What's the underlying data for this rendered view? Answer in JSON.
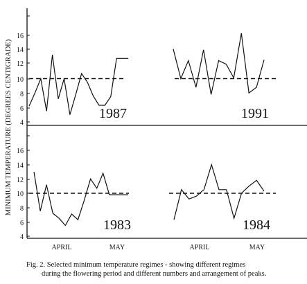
{
  "chart_data": {
    "type": "line",
    "ylabel": "MINIMUM TEMPERATURE (DEGREES CENTIGRADE)",
    "months": [
      "APRIL",
      "MAY"
    ],
    "ylim": [
      4,
      18
    ],
    "yticks_top": [
      "16",
      "14",
      "12",
      "10",
      "8",
      "6",
      "4"
    ],
    "yticks_bottom": [
      "16",
      "14",
      "12",
      "10",
      "8",
      "6",
      "4"
    ],
    "threshold": 10,
    "panels": [
      {
        "year": "1987",
        "threshold": 10,
        "series": [
          {
            "x": [
              0,
              1,
              2,
              3,
              4,
              5,
              6,
              7,
              8,
              9,
              10,
              11,
              12,
              13,
              14,
              15,
              16,
              17
            ],
            "y": [
              6.2,
              8.0,
              10.0,
              5.5,
              13.3,
              7.2,
              10.0,
              5.0,
              7.8,
              10.7,
              9.5,
              7.6,
              6.3,
              6.3,
              7.5,
              12.8,
              12.8,
              12.8
            ]
          }
        ]
      },
      {
        "year": "1991",
        "threshold": 10,
        "series": [
          {
            "x": [
              0,
              1,
              2,
              3,
              4,
              5,
              6,
              7,
              8,
              9,
              10,
              11,
              12
            ],
            "y": [
              14.1,
              10.0,
              12.5,
              8.8,
              14.0,
              7.8,
              12.5,
              12.0,
              10.1,
              16.3,
              8.0,
              8.8,
              12.6
            ]
          }
        ]
      },
      {
        "year": "1983",
        "threshold": 10,
        "series": [
          {
            "x": [
              0,
              1,
              2,
              3,
              4,
              5,
              6,
              7,
              8,
              9,
              10,
              11,
              12,
              13,
              14,
              15
            ],
            "y": [
              13.0,
              7.5,
              11.2,
              7.2,
              6.5,
              5.5,
              7.1,
              6.3,
              9.0,
              12.0,
              10.7,
              12.8,
              9.8,
              9.8,
              9.8,
              9.8
            ]
          }
        ]
      },
      {
        "year": "1984",
        "threshold": 10,
        "series": [
          {
            "x": [
              0,
              1,
              2,
              3,
              4,
              5,
              6,
              7,
              8,
              9,
              10,
              11,
              12
            ],
            "y": [
              6.3,
              10.5,
              9.2,
              9.6,
              10.5,
              14.0,
              10.5,
              10.5,
              6.5,
              10.0,
              11.0,
              11.8,
              10.3
            ]
          }
        ]
      }
    ],
    "legend": "none",
    "grid": false
  },
  "caption": {
    "line1": "Fig. 2. Selected minimum temperature regimes - showing different regimes",
    "line2": "during the flowering period and different numbers and arrangement of peaks."
  },
  "colors": {
    "ink": "#111111",
    "background": "#ffffff"
  }
}
